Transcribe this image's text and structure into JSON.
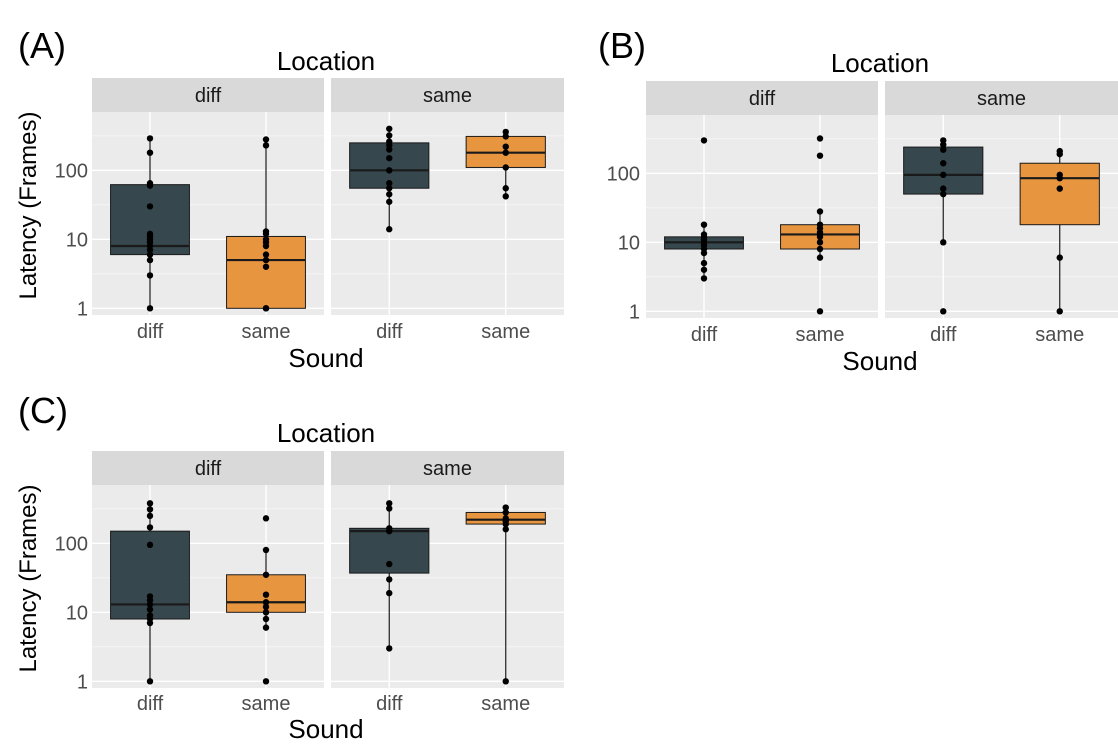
{
  "colors": {
    "diff_box": "#36474d",
    "same_box": "#e8953f",
    "panel_bg": "#ebebeb",
    "strip_bg": "#d9d9d9",
    "grid": "#ffffff",
    "text": "#000000",
    "tick_text": "#4d4d4d"
  },
  "chart_data": [
    {
      "type": "box",
      "panel_label": "(A)",
      "title": "Location",
      "xlabel": "Sound",
      "ylabel": "Latency (Frames)",
      "y_scale": "log10",
      "ylim": [
        0.8,
        700
      ],
      "y_ticks": [
        1,
        10,
        100
      ],
      "y_tick_labels": [
        "1",
        "10",
        "100"
      ],
      "facets": [
        {
          "strip": "diff",
          "groups": [
            {
              "category": "diff",
              "q1": 6,
              "median": 8,
              "q3": 62,
              "whisker_low": 1,
              "whisker_high": 290,
              "points": [
                1,
                3,
                5,
                6,
                7,
                8,
                9,
                10,
                11,
                12,
                30,
                60,
                65,
                180,
                290
              ]
            },
            {
              "category": "same",
              "q1": 1,
              "median": 5,
              "q3": 11,
              "whisker_low": 1,
              "whisker_high": 280,
              "points": [
                1,
                1,
                4,
                5,
                6,
                8,
                9,
                10,
                12,
                13,
                230,
                280
              ]
            }
          ]
        },
        {
          "strip": "same",
          "groups": [
            {
              "category": "diff",
              "q1": 55,
              "median": 100,
              "q3": 250,
              "whisker_low": 14,
              "whisker_high": 400,
              "points": [
                14,
                35,
                45,
                55,
                65,
                100,
                150,
                200,
                230,
                260,
                320,
                400
              ]
            },
            {
              "category": "same",
              "q1": 110,
              "median": 180,
              "q3": 310,
              "whisker_low": 42,
              "whisker_high": 360,
              "points": [
                42,
                55,
                110,
                180,
                220,
                310,
                360
              ]
            }
          ]
        }
      ]
    },
    {
      "type": "box",
      "panel_label": "(B)",
      "title": "Location",
      "xlabel": "Sound",
      "ylabel": "",
      "y_scale": "log10",
      "ylim": [
        0.8,
        700
      ],
      "y_ticks": [
        1,
        10,
        100
      ],
      "y_tick_labels": [
        "1",
        "10",
        "100"
      ],
      "facets": [
        {
          "strip": "diff",
          "groups": [
            {
              "category": "diff",
              "q1": 8,
              "median": 10,
              "q3": 12,
              "whisker_low": 3,
              "whisker_high": 18,
              "points": [
                3,
                4,
                5,
                7,
                8,
                9,
                10,
                10,
                11,
                12,
                13,
                18,
                300
              ]
            },
            {
              "category": "same",
              "q1": 8,
              "median": 13,
              "q3": 18,
              "whisker_low": 6,
              "whisker_high": 28,
              "points": [
                1,
                6,
                8,
                10,
                12,
                13,
                14,
                16,
                18,
                28,
                180,
                320
              ]
            }
          ]
        },
        {
          "strip": "same",
          "groups": [
            {
              "category": "diff",
              "q1": 50,
              "median": 95,
              "q3": 240,
              "whisker_low": 10,
              "whisker_high": 300,
              "points": [
                1,
                10,
                50,
                60,
                95,
                140,
                220,
                260,
                300
              ]
            },
            {
              "category": "same",
              "q1": 18,
              "median": 85,
              "q3": 140,
              "whisker_low": 1,
              "whisker_high": 210,
              "points": [
                1,
                6,
                60,
                85,
                95,
                190,
                210
              ]
            }
          ]
        }
      ]
    },
    {
      "type": "box",
      "panel_label": "(C)",
      "title": "Location",
      "xlabel": "Sound",
      "ylabel": "Latency (Frames)",
      "y_scale": "log10",
      "ylim": [
        0.8,
        700
      ],
      "y_ticks": [
        1,
        10,
        100
      ],
      "y_tick_labels": [
        "1",
        "10",
        "100"
      ],
      "facets": [
        {
          "strip": "diff",
          "groups": [
            {
              "category": "diff",
              "q1": 8,
              "median": 13,
              "q3": 150,
              "whisker_low": 1,
              "whisker_high": 380,
              "points": [
                1,
                7,
                8,
                9,
                11,
                13,
                15,
                17,
                95,
                170,
                250,
                310,
                380
              ]
            },
            {
              "category": "same",
              "q1": 10,
              "median": 14,
              "q3": 35,
              "whisker_low": 6,
              "whisker_high": 80,
              "points": [
                1,
                6,
                8,
                10,
                12,
                14,
                18,
                35,
                80,
                230
              ]
            }
          ]
        },
        {
          "strip": "same",
          "groups": [
            {
              "category": "diff",
              "q1": 37,
              "median": 150,
              "q3": 165,
              "whisker_low": 3,
              "whisker_high": 380,
              "points": [
                3,
                19,
                30,
                50,
                150,
                165,
                320,
                380
              ]
            },
            {
              "category": "same",
              "q1": 190,
              "median": 220,
              "q3": 280,
              "whisker_low": 1,
              "whisker_high": 330,
              "points": [
                1,
                160,
                190,
                210,
                230,
                280,
                330
              ]
            }
          ]
        }
      ]
    }
  ]
}
